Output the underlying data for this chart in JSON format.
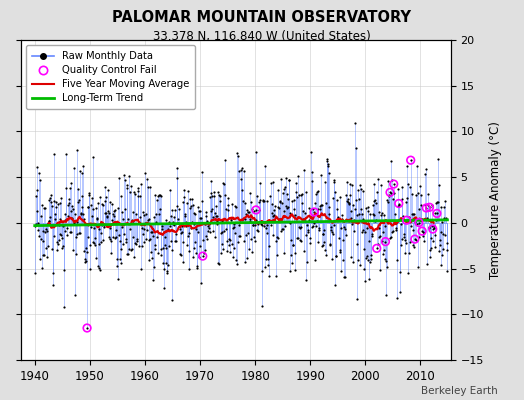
{
  "title": "PALOMAR MOUNTAIN OBSERVATORY",
  "subtitle": "33.378 N, 116.840 W (United States)",
  "ylabel": "Temperature Anomaly (°C)",
  "credit": "Berkeley Earth",
  "xlim": [
    1937.5,
    2015.5
  ],
  "ylim": [
    -15,
    20
  ],
  "yticks": [
    -15,
    -10,
    -5,
    0,
    5,
    10,
    15,
    20
  ],
  "xticks": [
    1940,
    1950,
    1960,
    1970,
    1980,
    1990,
    2000,
    2010
  ],
  "bg_color": "#e0e0e0",
  "plot_bg_color": "#ffffff",
  "line_color": "#6688ff",
  "dot_color": "#000000",
  "moving_avg_color": "#dd0000",
  "trend_color": "#00bb00",
  "qc_color": "#ff00ff",
  "seed": 17,
  "n_months": 900,
  "start_year": 1940.0,
  "noise_std": 2.8,
  "trend_slope": 0.0007,
  "trend_intercept": -0.3
}
